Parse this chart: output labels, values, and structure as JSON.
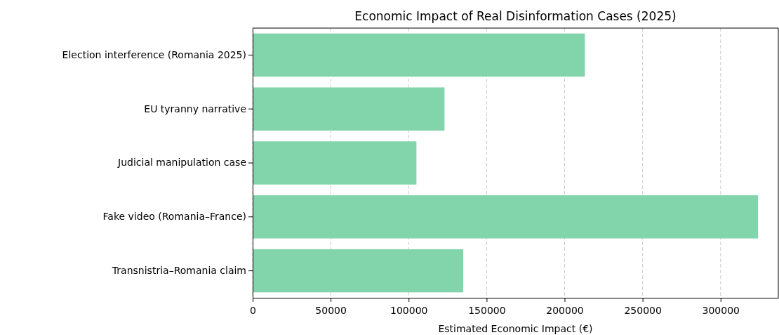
{
  "chart_data": {
    "type": "bar",
    "orientation": "horizontal",
    "title": "Economic Impact of Real Disinformation Cases (2025)",
    "xlabel": "Estimated Economic Impact (€)",
    "categories": [
      "Election interference (Romania 2025)",
      "EU tyranny narrative",
      "Judicial manipulation case",
      "Fake video (Romania–France)",
      "Transnistria–Romania claim"
    ],
    "values": [
      213000,
      123000,
      105000,
      324000,
      135000
    ],
    "color": "#82d4ab",
    "xlim": [
      0,
      337000
    ],
    "xticks": [
      0,
      50000,
      100000,
      150000,
      200000,
      250000,
      300000
    ],
    "grid": "x"
  }
}
